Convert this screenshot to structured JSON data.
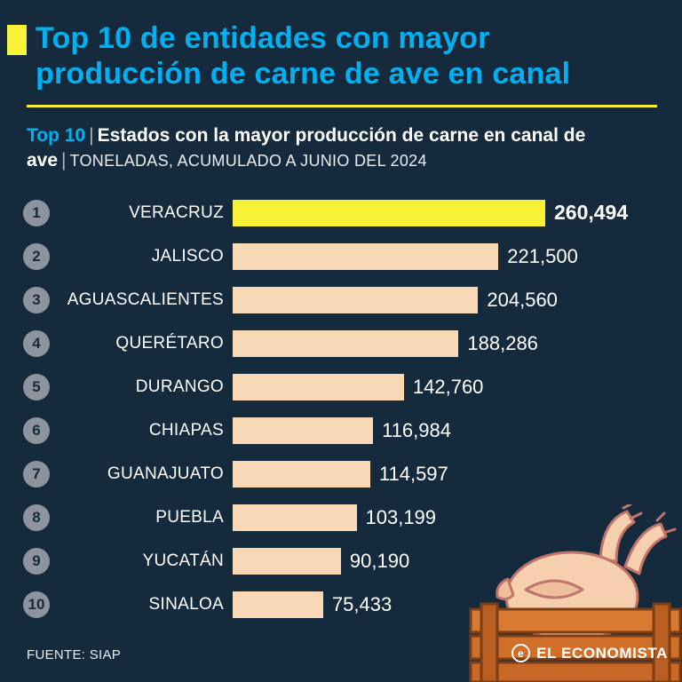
{
  "header": {
    "title_line1": "Top 10 de entidades con mayor",
    "title_line2": "producción de carne de ave en canal"
  },
  "subtitle": {
    "tag": "Top 10",
    "sep1": "|",
    "bold": "Estados con la mayor producción de carne en canal de ave",
    "sep2": "|",
    "unit": "TONELADAS, ACUMULADO A JUNIO DEL 2024"
  },
  "footer": {
    "source": "FUENTE: SIAP",
    "brand": "EL ECONOMISTA",
    "brand_icon": "e"
  },
  "colors": {
    "background": "#152a3d",
    "accent_cyan": "#00b0f0",
    "accent_yellow": "#f8f138",
    "bar_peach": "#f8d8b5",
    "rank_badge": "#8d949d",
    "text": "#ffffff"
  },
  "chart_data": {
    "type": "bar",
    "orientation": "horizontal",
    "title": "Top 10 | Estados con la mayor producción de carne en canal de ave",
    "unit_label": "TONELADAS, ACUMULADO A JUNIO DEL 2024",
    "categories": [
      "VERACRUZ",
      "JALISCO",
      "AGUASCALIENTES",
      "QUERÉTARO",
      "DURANGO",
      "CHIAPAS",
      "GUANAJUATO",
      "PUEBLA",
      "YUCATÁN",
      "SINALOA"
    ],
    "values": [
      260494,
      221500,
      204560,
      188286,
      142760,
      116984,
      114597,
      103199,
      90190,
      75433
    ],
    "value_labels": [
      "260,494",
      "221,500",
      "204,560",
      "188,286",
      "142,760",
      "116,984",
      "114,597",
      "103,199",
      "90,190",
      "75,433"
    ],
    "ranks": [
      1,
      2,
      3,
      4,
      5,
      6,
      7,
      8,
      9,
      10
    ],
    "highlight_index": 0,
    "xlim": [
      0,
      260494
    ],
    "legend": "none",
    "grid": false,
    "source": "SIAP"
  }
}
